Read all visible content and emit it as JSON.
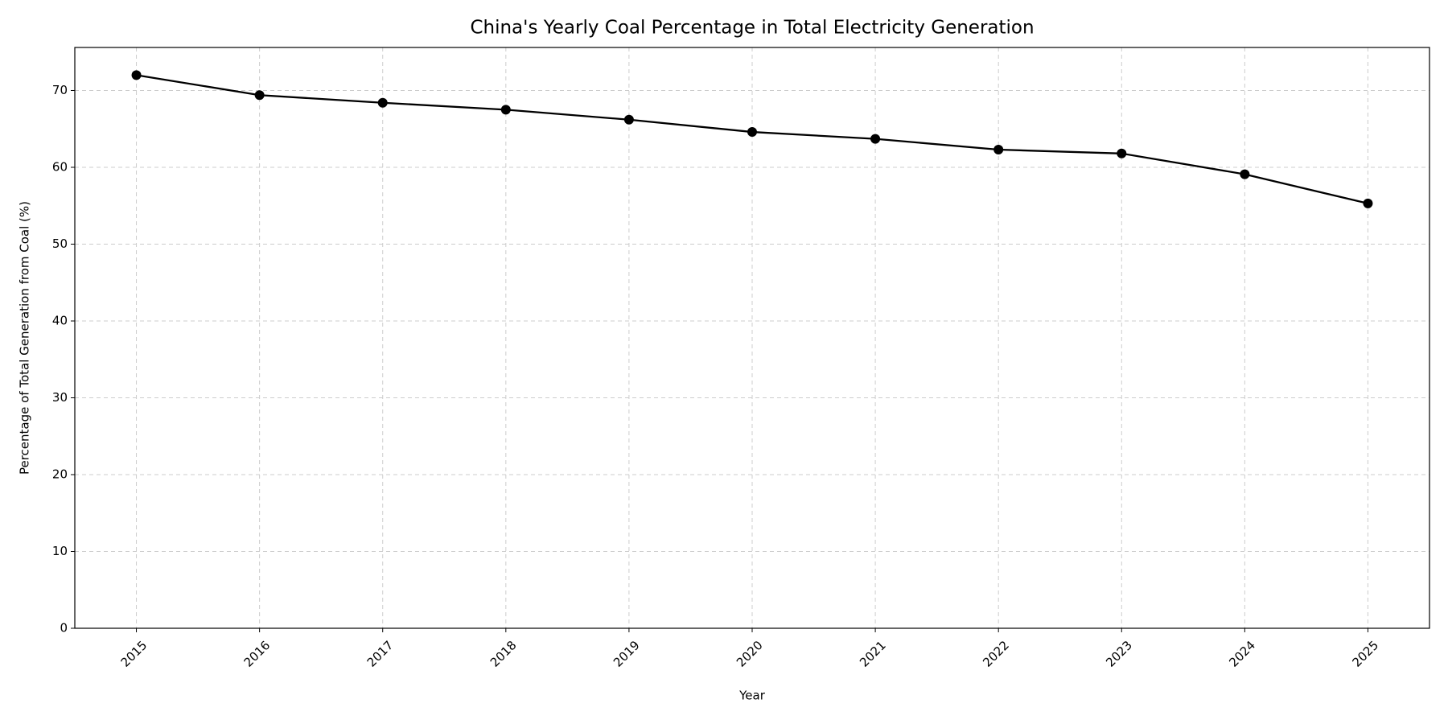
{
  "chart_data": {
    "type": "line",
    "title": "China's Yearly Coal Percentage in Total Electricity Generation",
    "x_label": "Year",
    "y_label": "Percentage of Total Generation from Coal (%)",
    "x": [
      2015,
      2016,
      2017,
      2018,
      2019,
      2020,
      2021,
      2022,
      2023,
      2024,
      2025
    ],
    "series": [
      {
        "name": "Coal",
        "color": "#000000",
        "values": [
          72.0,
          69.4,
          68.4,
          67.5,
          66.2,
          64.6,
          63.7,
          62.3,
          61.8,
          59.1,
          55.3
        ]
      }
    ],
    "xlim": [
      2014.5,
      2025.5
    ],
    "xticks": [
      2015,
      2016,
      2017,
      2018,
      2019,
      2020,
      2021,
      2022,
      2023,
      2024,
      2025
    ],
    "ylim": [
      0,
      75.6
    ],
    "yticks": [
      0,
      10,
      20,
      30,
      40,
      50,
      60,
      70
    ],
    "grid": true
  }
}
